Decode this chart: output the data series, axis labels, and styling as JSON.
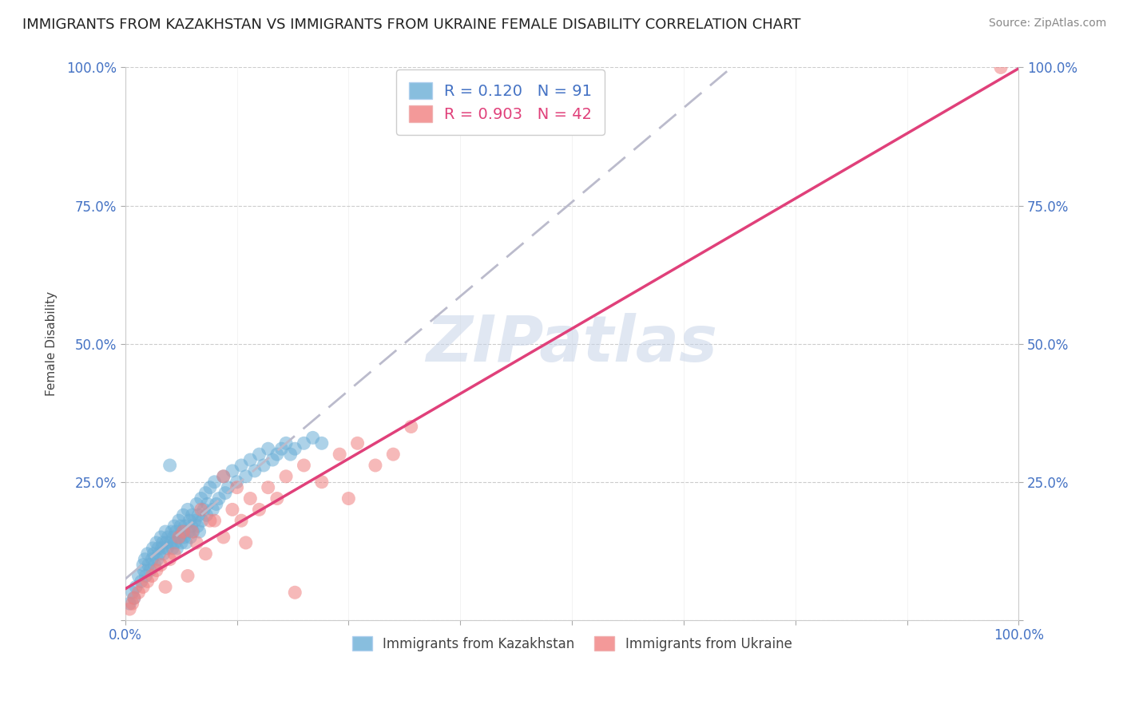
{
  "title": "IMMIGRANTS FROM KAZAKHSTAN VS IMMIGRANTS FROM UKRAINE FEMALE DISABILITY CORRELATION CHART",
  "source": "Source: ZipAtlas.com",
  "ylabel": "Female Disability",
  "R_kaz": 0.12,
  "N_kaz": 91,
  "R_ukr": 0.903,
  "N_ukr": 42,
  "color_kaz": "#6baed6",
  "color_ukr": "#f08080",
  "line_color_kaz": "#bbbbcc",
  "line_color_ukr": "#e0407a",
  "watermark_color": "#d0d8e8",
  "background_color": "#ffffff",
  "kaz_x": [
    0.5,
    0.8,
    1.0,
    1.2,
    1.5,
    1.8,
    2.0,
    2.1,
    2.2,
    2.3,
    2.5,
    2.6,
    2.8,
    3.0,
    3.1,
    3.2,
    3.3,
    3.5,
    3.6,
    3.7,
    3.8,
    4.0,
    4.1,
    4.2,
    4.3,
    4.5,
    4.6,
    4.7,
    4.8,
    5.0,
    5.1,
    5.2,
    5.3,
    5.4,
    5.5,
    5.6,
    5.7,
    5.8,
    6.0,
    6.1,
    6.2,
    6.3,
    6.4,
    6.5,
    6.6,
    6.7,
    6.8,
    7.0,
    7.1,
    7.2,
    7.3,
    7.4,
    7.5,
    7.6,
    7.8,
    8.0,
    8.1,
    8.2,
    8.3,
    8.5,
    8.6,
    8.8,
    9.0,
    9.1,
    9.2,
    9.5,
    9.8,
    10.0,
    10.2,
    10.5,
    11.0,
    11.2,
    11.5,
    12.0,
    12.5,
    13.0,
    13.5,
    14.0,
    14.5,
    15.0,
    15.5,
    16.0,
    16.5,
    17.0,
    17.5,
    18.0,
    18.5,
    19.0,
    20.0,
    21.0,
    22.0
  ],
  "kaz_y": [
    3.0,
    5.0,
    4.0,
    6.0,
    8.0,
    7.0,
    10.0,
    9.0,
    11.0,
    8.0,
    12.0,
    10.0,
    9.0,
    11.0,
    13.0,
    12.0,
    10.0,
    14.0,
    11.0,
    13.0,
    12.0,
    15.0,
    13.0,
    14.0,
    12.0,
    16.0,
    14.0,
    13.0,
    15.0,
    28.0,
    14.0,
    16.0,
    13.0,
    15.0,
    17.0,
    14.0,
    16.0,
    13.0,
    18.0,
    15.0,
    17.0,
    14.0,
    16.0,
    19.0,
    15.0,
    17.0,
    14.0,
    20.0,
    16.0,
    18.0,
    15.0,
    17.0,
    19.0,
    16.0,
    18.0,
    21.0,
    17.0,
    19.0,
    16.0,
    22.0,
    18.0,
    20.0,
    23.0,
    19.0,
    21.0,
    24.0,
    20.0,
    25.0,
    21.0,
    22.0,
    26.0,
    23.0,
    24.0,
    27.0,
    25.0,
    28.0,
    26.0,
    29.0,
    27.0,
    30.0,
    28.0,
    31.0,
    29.0,
    30.0,
    31.0,
    32.0,
    30.0,
    31.0,
    32.0,
    33.0,
    32.0
  ],
  "ukr_x": [
    0.5,
    0.8,
    1.0,
    1.5,
    2.0,
    2.5,
    3.0,
    3.5,
    4.0,
    5.0,
    5.5,
    6.0,
    6.5,
    7.0,
    8.0,
    9.0,
    10.0,
    11.0,
    12.0,
    13.0,
    14.0,
    15.0,
    16.0,
    17.0,
    18.0,
    19.0,
    20.0,
    22.0,
    24.0,
    25.0,
    26.0,
    28.0,
    30.0,
    32.0,
    11.0,
    12.5,
    8.5,
    9.5,
    4.5,
    7.5,
    13.5,
    98.0
  ],
  "ukr_y": [
    2.0,
    3.0,
    4.0,
    5.0,
    6.0,
    7.0,
    8.0,
    9.0,
    10.0,
    11.0,
    12.0,
    15.0,
    16.0,
    8.0,
    14.0,
    12.0,
    18.0,
    15.0,
    20.0,
    18.0,
    22.0,
    20.0,
    24.0,
    22.0,
    26.0,
    5.0,
    28.0,
    25.0,
    30.0,
    22.0,
    32.0,
    28.0,
    30.0,
    35.0,
    26.0,
    24.0,
    20.0,
    18.0,
    6.0,
    16.0,
    14.0,
    100.0
  ]
}
